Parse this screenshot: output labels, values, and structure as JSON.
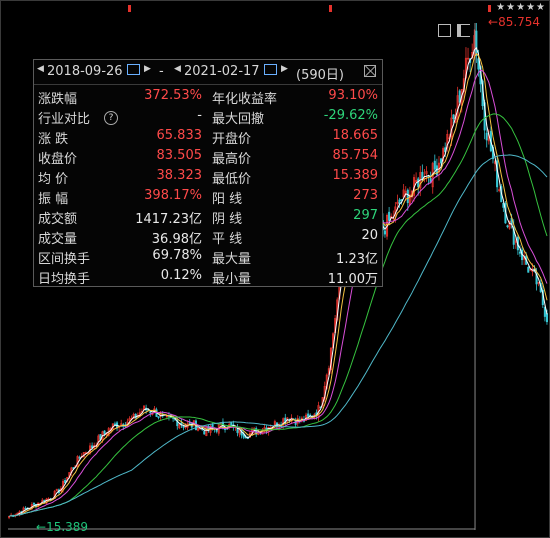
{
  "toolbar": {
    "stars": "★★★★★"
  },
  "stat_panel": {
    "start_date": "2018-09-26",
    "end_date": "2021-02-17",
    "separator": "-",
    "days": "(590日)",
    "rows": [
      {
        "l1": "涨跌幅",
        "v1": "372.53%",
        "c1": "red",
        "l2": "年化收益率",
        "v2": "93.10%",
        "c2": "red"
      },
      {
        "l1": "行业对比",
        "v1": "-",
        "c1": "white",
        "l2": "最大回撤",
        "v2": "-29.62%",
        "c2": "green"
      },
      {
        "l1": "涨  跌",
        "v1": "65.833",
        "c1": "red",
        "l2": "开盘价",
        "v2": "18.665",
        "c2": "red"
      },
      {
        "l1": "收盘价",
        "v1": "83.505",
        "c1": "red",
        "l2": "最高价",
        "v2": "85.754",
        "c2": "red"
      },
      {
        "l1": "均  价",
        "v1": "38.323",
        "c1": "red",
        "l2": "最低价",
        "v2": "15.389",
        "c2": "red"
      },
      {
        "l1": "振  幅",
        "v1": "398.17%",
        "c1": "red",
        "l2": "阳  线",
        "v2": "273",
        "c2": "red"
      },
      {
        "l1": "成交额",
        "v1": "1417.23亿",
        "c1": "white",
        "l2": "阴  线",
        "v2": "297",
        "c2": "green"
      },
      {
        "l1": "成交量",
        "v1": "36.98亿",
        "c1": "white",
        "l2": "平  线",
        "v2": "20",
        "c2": "white"
      },
      {
        "l1": "区间换手",
        "v1": "69.78%",
        "c1": "white",
        "l2": "最大量",
        "v2": "1.23亿",
        "c2": "white"
      },
      {
        "l1": "日均换手",
        "v1": "0.12%",
        "c1": "white",
        "l2": "最小量",
        "v2": "11.00万",
        "c2": "white"
      }
    ]
  },
  "chart_data": {
    "type": "line",
    "subtype": "candlestick",
    "price_high_label": "85.754",
    "price_low_label": "15.389",
    "ylim": [
      15.389,
      85.754
    ],
    "x": [
      0,
      20,
      40,
      60,
      80,
      100,
      120,
      140,
      160,
      180,
      200,
      220,
      240,
      260,
      280,
      300,
      320,
      340,
      360,
      380,
      400,
      420,
      440,
      460,
      480,
      500,
      520,
      540,
      560,
      580,
      600,
      620,
      640,
      660,
      680,
      700,
      720,
      740,
      760,
      780,
      800,
      820,
      840,
      860,
      880,
      900,
      920,
      940,
      960,
      980,
      1000,
      1020,
      1040
    ],
    "close": [
      16.2,
      16.8,
      17.5,
      18.2,
      18.8,
      20.1,
      22.8,
      24.9,
      26.0,
      27.6,
      28.9,
      29.4,
      29.9,
      31.3,
      31.1,
      29.8,
      29.8,
      29.0,
      29.1,
      28.2,
      28.6,
      29.1,
      28.4,
      27.7,
      28.3,
      28.9,
      29.3,
      30.3,
      29.6,
      30.0,
      31.4,
      38.4,
      49.8,
      54.7,
      56.6,
      57.9,
      56.5,
      58.2,
      61.0,
      62.2,
      64.8,
      64.6,
      67.7,
      72.1,
      78.4,
      84.2,
      71.9,
      64.9,
      58.7,
      54.9,
      51.7,
      49.2,
      44.2
    ],
    "series": [
      {
        "name": "MA5",
        "color": "#ffffff"
      },
      {
        "name": "MA10",
        "color": "#f5c242"
      },
      {
        "name": "MA20",
        "color": "#d94fd9"
      },
      {
        "name": "MA60",
        "color": "#36c23f"
      },
      {
        "name": "MA120",
        "color": "#4fb8c9"
      }
    ],
    "up_color": "#e5322c",
    "down_color": "#37c8d6",
    "crosshair_color": "#8a8a8a"
  }
}
